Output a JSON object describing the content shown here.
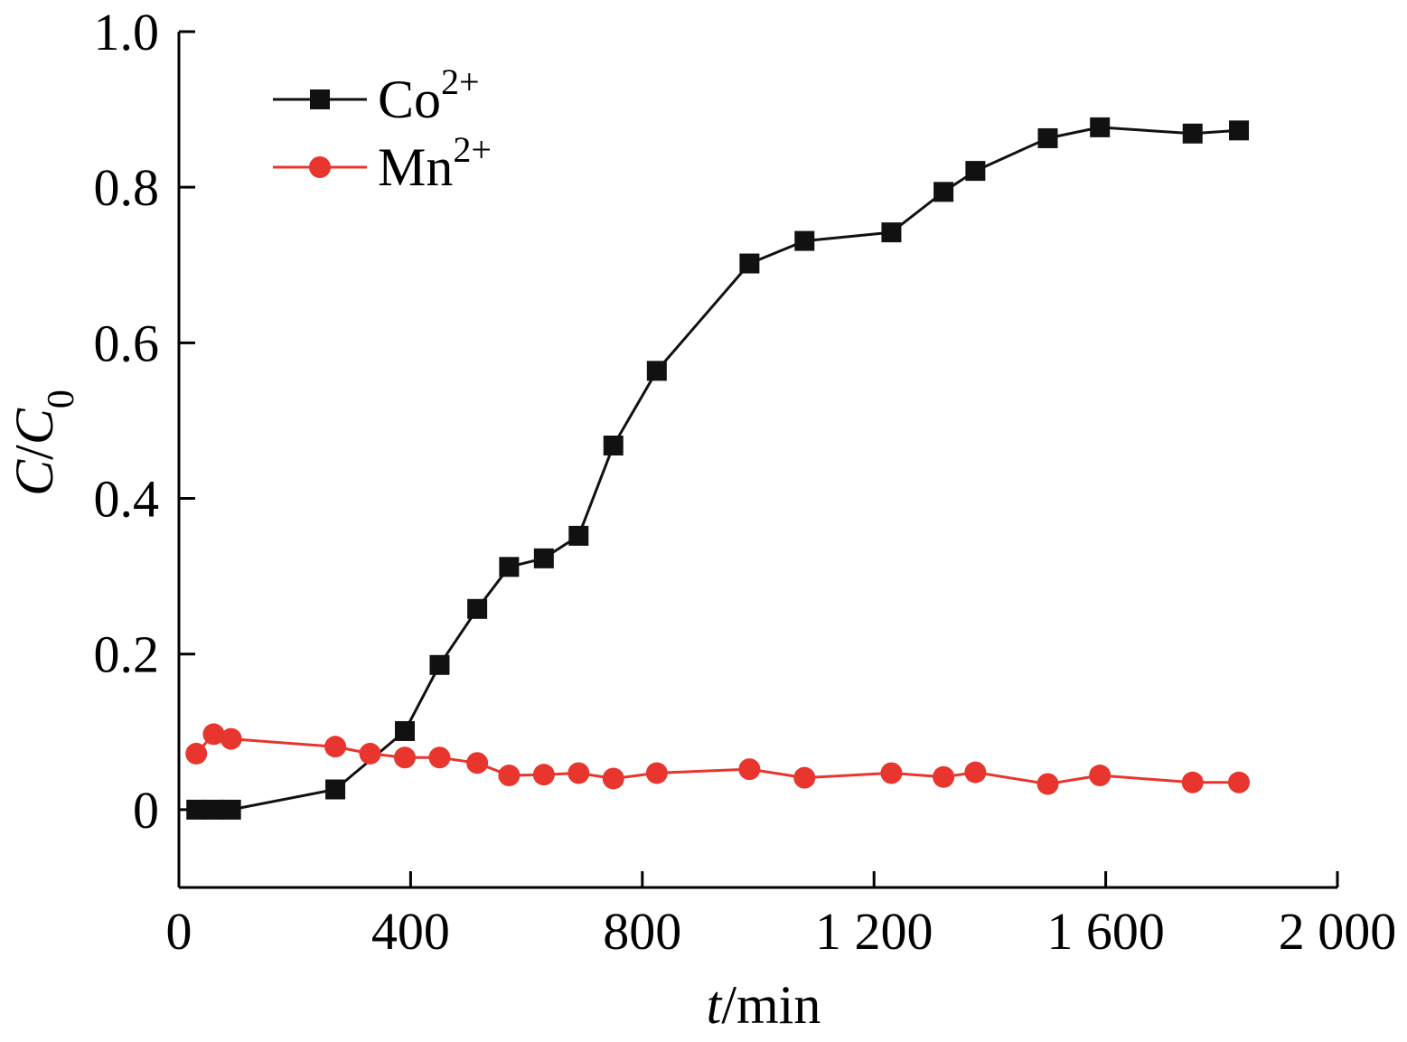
{
  "chart_data": {
    "type": "line",
    "xlabel": {
      "italic": "t",
      "rest": "/min"
    },
    "ylabel": {
      "c": "C",
      "slash": "/",
      "c0": "C",
      "sub": "0"
    },
    "xlim": [
      0,
      2000
    ],
    "ylim": [
      -0.1,
      1.0
    ],
    "xticks": [
      {
        "value": 0,
        "label": "0"
      },
      {
        "value": 400,
        "label": "400"
      },
      {
        "value": 800,
        "label": "800"
      },
      {
        "value": 1200,
        "label": "1 200"
      },
      {
        "value": 1600,
        "label": "1 600"
      },
      {
        "value": 2000,
        "label": "2 000"
      }
    ],
    "yticks": [
      {
        "value": 0,
        "label": "0"
      },
      {
        "value": 0.2,
        "label": "0.2"
      },
      {
        "value": 0.4,
        "label": "0.4"
      },
      {
        "value": 0.6,
        "label": "0.6"
      },
      {
        "value": 0.8,
        "label": "0.8"
      },
      {
        "value": 1.0,
        "label": "1.0"
      }
    ],
    "grid": false,
    "legend_position": "top-left",
    "series": [
      {
        "key": "co",
        "name": "Co",
        "sup": "2+",
        "color": "#111111",
        "marker": "square",
        "x": [
          30,
          60,
          90,
          270,
          390,
          450,
          515,
          570,
          630,
          690,
          750,
          825,
          985,
          1080,
          1230,
          1320,
          1375,
          1500,
          1590,
          1750,
          1830
        ],
        "y": [
          0,
          0,
          0,
          0.026,
          0.101,
          0.186,
          0.258,
          0.312,
          0.323,
          0.352,
          0.468,
          0.564,
          0.702,
          0.731,
          0.742,
          0.794,
          0.821,
          0.863,
          0.877,
          0.869,
          0.873
        ]
      },
      {
        "key": "mn",
        "name": "Mn",
        "sup": "2+",
        "color": "#e8352e",
        "marker": "circle",
        "x": [
          30,
          60,
          90,
          270,
          330,
          390,
          450,
          515,
          570,
          630,
          690,
          750,
          825,
          985,
          1080,
          1230,
          1320,
          1375,
          1500,
          1590,
          1750,
          1830
        ],
        "y": [
          0.072,
          0.097,
          0.091,
          0.081,
          0.072,
          0.067,
          0.067,
          0.06,
          0.044,
          0.045,
          0.047,
          0.04,
          0.047,
          0.052,
          0.041,
          0.047,
          0.042,
          0.048,
          0.033,
          0.044,
          0.035,
          0.035
        ]
      }
    ]
  }
}
